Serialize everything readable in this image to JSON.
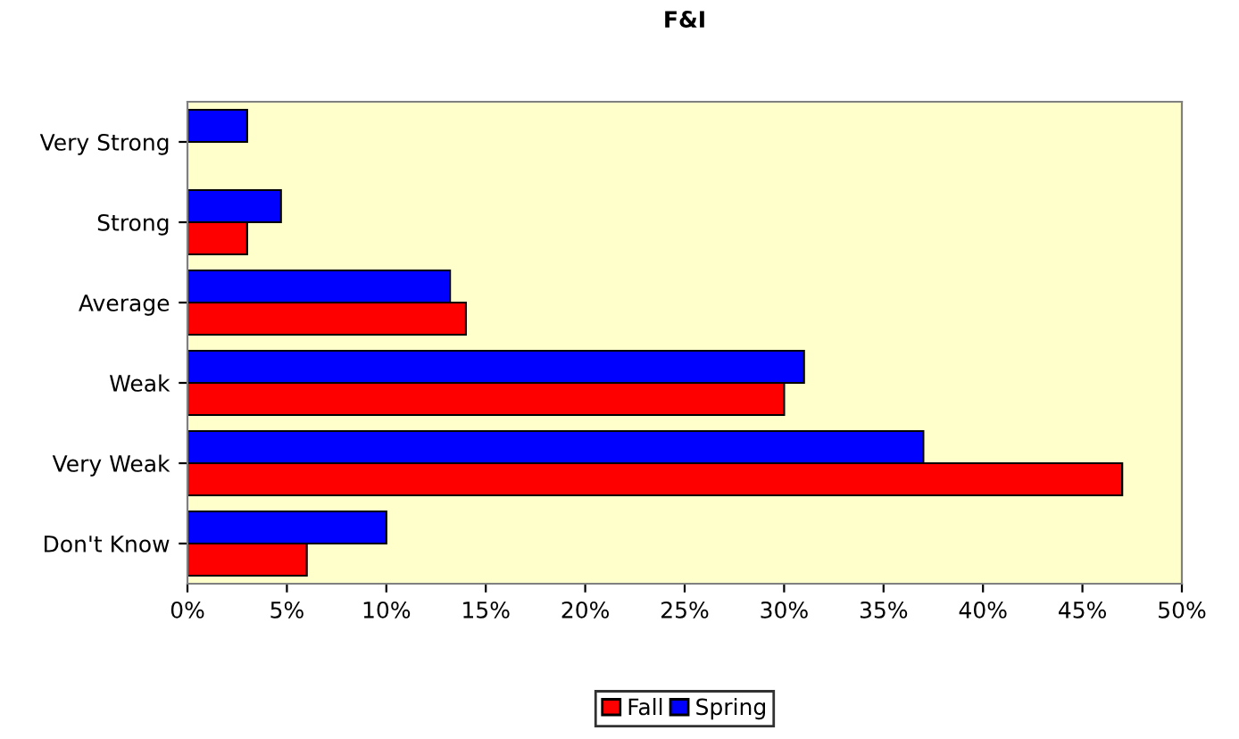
{
  "chart_data": {
    "type": "bar",
    "orientation": "horizontal",
    "title": "F&I",
    "categories": [
      "Very Strong",
      "Strong",
      "Average",
      "Weak",
      "Very Weak",
      "Don't Know"
    ],
    "series": [
      {
        "name": "Fall",
        "color": "#ff0000",
        "values": [
          null,
          3,
          14,
          30,
          47,
          6
        ]
      },
      {
        "name": "Spring",
        "color": "#0000ff",
        "values": [
          3,
          4.7,
          13.2,
          31,
          37,
          10
        ]
      }
    ],
    "xlim": [
      0,
      50
    ],
    "xticks": [
      {
        "value": 0,
        "label": "0%"
      },
      {
        "value": 5,
        "label": "5%"
      },
      {
        "value": 10,
        "label": "10%"
      },
      {
        "value": 15,
        "label": "15%"
      },
      {
        "value": 20,
        "label": "20%"
      },
      {
        "value": 25,
        "label": "25%"
      },
      {
        "value": 30,
        "label": "30%"
      },
      {
        "value": 35,
        "label": "35%"
      },
      {
        "value": 40,
        "label": "40%"
      },
      {
        "value": 45,
        "label": "45%"
      },
      {
        "value": 50,
        "label": "50%"
      }
    ],
    "grid": false,
    "legend": "bottom"
  }
}
